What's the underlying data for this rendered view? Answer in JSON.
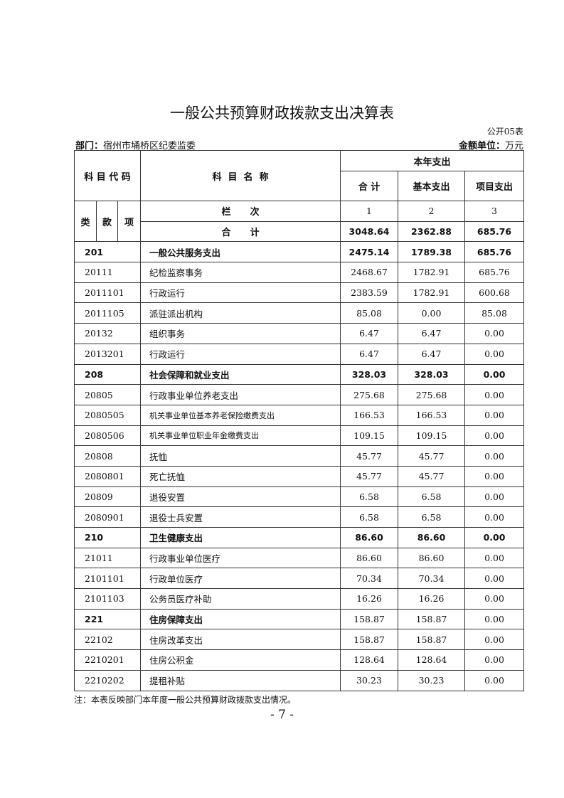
{
  "title": "一般公共预算财政拨款支出决算表",
  "form_no": "公开05表",
  "dept_label": "部门：",
  "dept": "宿州市埇桥区纪委监委",
  "unit_label": "金额单位：",
  "unit": "万元",
  "header": {
    "code": "科 目 代 码",
    "name": "科  目  名  称",
    "current_year": "本年支出",
    "total": "合 计",
    "basic": "基本支出",
    "project": "项目支出",
    "lei": "类",
    "kuan": "款",
    "xiang": "项",
    "col_label": "栏      次",
    "col1": "1",
    "col2": "2",
    "col3": "3",
    "sum_label": "合      计"
  },
  "total_row": {
    "total": "3048.64",
    "basic": "2362.88",
    "project": "685.76"
  },
  "rows": [
    {
      "code": "201",
      "name": "一般公共服务支出",
      "total": "2475.14",
      "basic": "1789.38",
      "project": "685.76",
      "level": "class",
      "bold_values": true
    },
    {
      "code": "20111",
      "name": "纪检监察事务",
      "total": "2468.67",
      "basic": "1782.91",
      "project": "685.76"
    },
    {
      "code": "2011101",
      "name": "行政运行",
      "total": "2383.59",
      "basic": "1782.91",
      "project": "600.68"
    },
    {
      "code": "2011105",
      "name": "派驻派出机构",
      "total": "85.08",
      "basic": "0.00",
      "project": "85.08"
    },
    {
      "code": "20132",
      "name": "组织事务",
      "total": "6.47",
      "basic": "6.47",
      "project": "0.00"
    },
    {
      "code": "2013201",
      "name": "行政运行",
      "total": "6.47",
      "basic": "6.47",
      "project": "0.00"
    },
    {
      "code": "208",
      "name": "社会保障和就业支出",
      "total": "328.03",
      "basic": "328.03",
      "project": "0.00",
      "level": "class",
      "bold_values": true
    },
    {
      "code": "20805",
      "name": "行政事业单位养老支出",
      "total": "275.68",
      "basic": "275.68",
      "project": "0.00"
    },
    {
      "code": "2080505",
      "name": "机关事业单位基本养老保险缴费支出",
      "total": "166.53",
      "basic": "166.53",
      "project": "0.00",
      "small": true
    },
    {
      "code": "2080506",
      "name": "机关事业单位职业年金缴费支出",
      "total": "109.15",
      "basic": "109.15",
      "project": "0.00",
      "small": true
    },
    {
      "code": "20808",
      "name": "抚恤",
      "total": "45.77",
      "basic": "45.77",
      "project": "0.00"
    },
    {
      "code": "2080801",
      "name": "死亡抚恤",
      "total": "45.77",
      "basic": "45.77",
      "project": "0.00"
    },
    {
      "code": "20809",
      "name": "退役安置",
      "total": "6.58",
      "basic": "6.58",
      "project": "0.00"
    },
    {
      "code": "2080901",
      "name": "退役士兵安置",
      "total": "6.58",
      "basic": "6.58",
      "project": "0.00"
    },
    {
      "code": "210",
      "name": "卫生健康支出",
      "total": "86.60",
      "basic": "86.60",
      "project": "0.00",
      "level": "class",
      "bold_values": true
    },
    {
      "code": "21011",
      "name": "行政事业单位医疗",
      "total": "86.60",
      "basic": "86.60",
      "project": "0.00"
    },
    {
      "code": "2101101",
      "name": "行政单位医疗",
      "total": "70.34",
      "basic": "70.34",
      "project": "0.00"
    },
    {
      "code": "2101103",
      "name": "公务员医疗补助",
      "total": "16.26",
      "basic": "16.26",
      "project": "0.00"
    },
    {
      "code": "221",
      "name": "住房保障支出",
      "total": "158.87",
      "basic": "158.87",
      "project": "0.00",
      "level": "class",
      "bold_values": false
    },
    {
      "code": "22102",
      "name": "住房改革支出",
      "total": "158.87",
      "basic": "158.87",
      "project": "0.00"
    },
    {
      "code": "2210201",
      "name": "住房公积金",
      "total": "128.64",
      "basic": "128.64",
      "project": "0.00"
    },
    {
      "code": "2210202",
      "name": "提租补贴",
      "total": "30.23",
      "basic": "30.23",
      "project": "0.00"
    }
  ],
  "note": "注：本表反映部门本年度一般公共预算财政拨款支出情况。",
  "page_number": "- 7 -"
}
